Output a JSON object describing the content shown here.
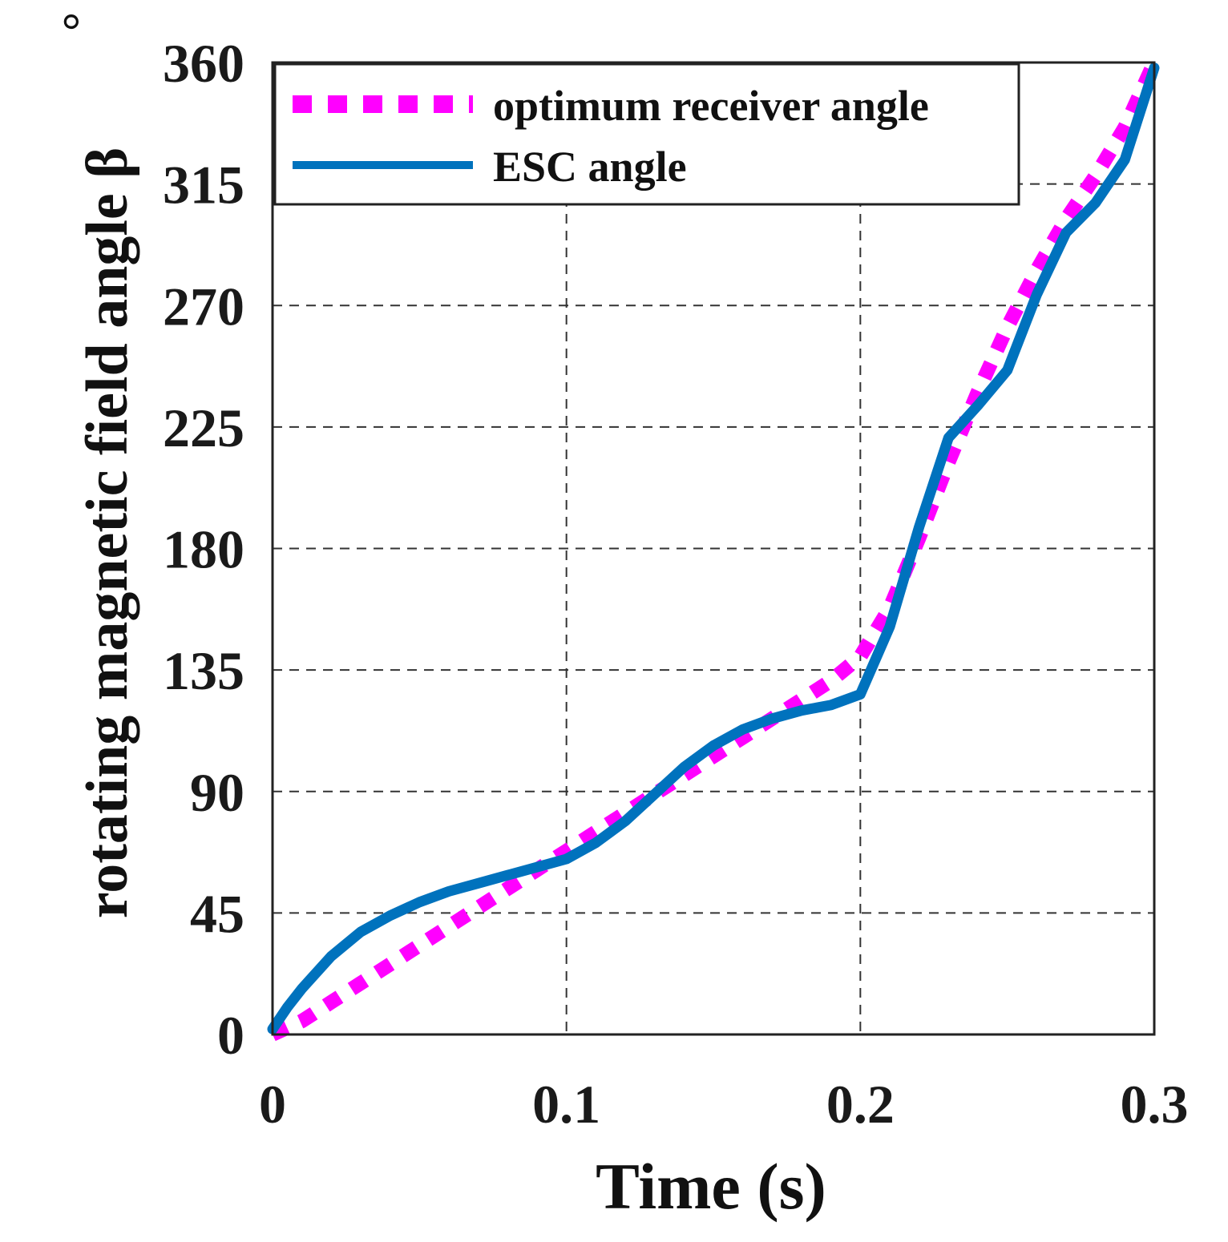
{
  "chart_data": {
    "type": "line",
    "title": "",
    "xlabel": "Time (s)",
    "ylabel": "rotating magnetic field angle β",
    "ylabel_unit": "°",
    "xlim": [
      0,
      0.3
    ],
    "ylim": [
      0,
      360
    ],
    "xticks": [
      0,
      0.1,
      0.2,
      0.3
    ],
    "xtick_labels": [
      "0",
      "0.1",
      "0.2",
      "0.3"
    ],
    "yticks": [
      0,
      45,
      90,
      135,
      180,
      225,
      270,
      315,
      360
    ],
    "ytick_labels": [
      "0",
      "45",
      "90",
      "135",
      "180",
      "225",
      "270",
      "315",
      "360"
    ],
    "grid": true,
    "legend_position": "top-left",
    "series": [
      {
        "name": "optimum receiver angle",
        "color": "#ff00ff",
        "style": "dashed",
        "x": [
          0,
          0.01,
          0.02,
          0.03,
          0.04,
          0.05,
          0.06,
          0.07,
          0.08,
          0.09,
          0.1,
          0.11,
          0.12,
          0.13,
          0.14,
          0.15,
          0.16,
          0.17,
          0.18,
          0.19,
          0.2,
          0.21,
          0.22,
          0.23,
          0.24,
          0.25,
          0.26,
          0.27,
          0.28,
          0.29,
          0.3
        ],
        "values": [
          0,
          5,
          12,
          19,
          26,
          33,
          40,
          47,
          54,
          61,
          68,
          75,
          82,
          89,
          96,
          103,
          110,
          117,
          124,
          131,
          140,
          158,
          184,
          212,
          238,
          262,
          283,
          302,
          318,
          336,
          360
        ]
      },
      {
        "name": "ESC angle",
        "color": "#0072bd",
        "style": "solid",
        "x": [
          0,
          0.005,
          0.01,
          0.02,
          0.03,
          0.04,
          0.05,
          0.06,
          0.07,
          0.08,
          0.09,
          0.1,
          0.11,
          0.12,
          0.13,
          0.14,
          0.15,
          0.16,
          0.17,
          0.18,
          0.19,
          0.2,
          0.21,
          0.22,
          0.23,
          0.24,
          0.25,
          0.26,
          0.27,
          0.28,
          0.29,
          0.3
        ],
        "values": [
          2,
          10,
          17,
          29,
          38,
          44,
          49,
          53,
          56,
          59,
          62,
          65,
          71,
          79,
          89,
          99,
          107,
          113,
          117,
          120,
          122,
          126,
          151,
          188,
          221,
          233,
          246,
          274,
          297,
          308,
          324,
          358
        ]
      }
    ]
  }
}
